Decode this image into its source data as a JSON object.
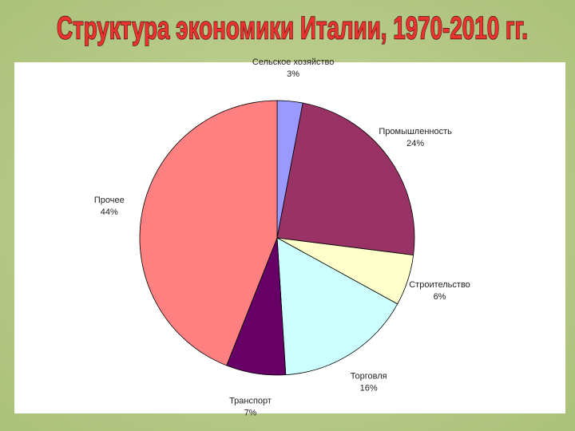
{
  "chart_data": {
    "type": "pie",
    "title": "Структура экономики Италии, 1970-2010 гг.",
    "categories": [
      "Сельское хозяйство",
      "Промышленность",
      "Строительство",
      "Торговля",
      "Транспорт",
      "Прочее"
    ],
    "values": [
      3,
      24,
      6,
      16,
      7,
      44
    ],
    "value_labels": [
      "3%",
      "24%",
      "6%",
      "16%",
      "7%",
      "44%"
    ],
    "colors": [
      "#9999ff",
      "#993366",
      "#ffffcc",
      "#ccffff",
      "#660066",
      "#ff8080"
    ]
  }
}
